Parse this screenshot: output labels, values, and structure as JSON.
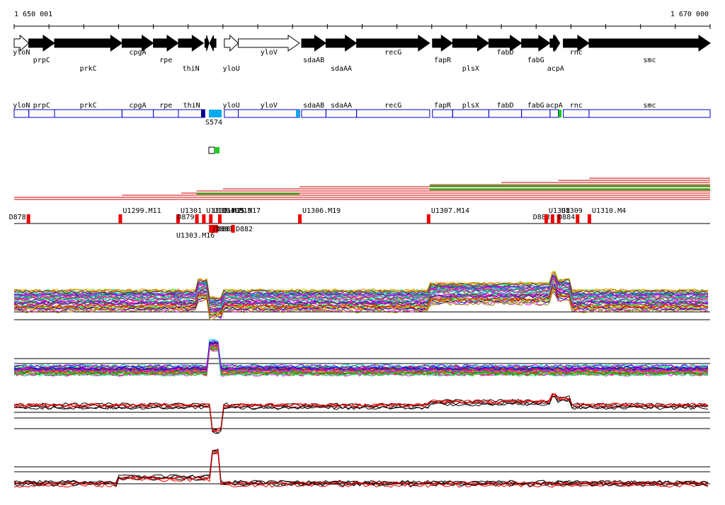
{
  "ruler": {
    "start_label": "1 650 001",
    "end_label": "1 670 000",
    "start": 1650001,
    "end": 1670000
  },
  "colors": {
    "gene": "#000000",
    "segment": "#0000cc",
    "highlight": "#00aaee",
    "upstream": "#cc0000",
    "downstream": "#00bb00",
    "profile_red": "#dd0000"
  },
  "genes": [
    {
      "name": "yloN",
      "strand": "+",
      "filled": false,
      "a": 0.0,
      "b": 0.021,
      "label_row": 1
    },
    {
      "name": "prpC",
      "strand": "+",
      "filled": true,
      "a": 0.021,
      "b": 0.058,
      "label_row": 2
    },
    {
      "name": "prkC",
      "strand": "+",
      "filled": true,
      "a": 0.058,
      "b": 0.155,
      "label_row": 3
    },
    {
      "name": "cpgA",
      "strand": "+",
      "filled": true,
      "a": 0.155,
      "b": 0.2,
      "label_row": 1
    },
    {
      "name": "rpe",
      "strand": "+",
      "filled": true,
      "a": 0.2,
      "b": 0.236,
      "label_row": 2
    },
    {
      "name": "thiN",
      "strand": "+",
      "filled": true,
      "a": 0.236,
      "b": 0.272,
      "label_row": 3
    },
    {
      "name": "",
      "strand": "+",
      "filled": true,
      "a": 0.274,
      "b": 0.28,
      "label_row": 1
    },
    {
      "name": "",
      "strand": "-",
      "filled": true,
      "a": 0.281,
      "b": 0.29,
      "label_row": 1
    },
    {
      "name": "yloU",
      "strand": "+",
      "filled": false,
      "a": 0.302,
      "b": 0.322,
      "label_row": 3
    },
    {
      "name": "yloV",
      "strand": "+",
      "filled": false,
      "a": 0.322,
      "b": 0.41,
      "label_row": 1
    },
    {
      "name": "sdaAB",
      "strand": "+",
      "filled": true,
      "a": 0.413,
      "b": 0.448,
      "label_row": 2
    },
    {
      "name": "sdaAA",
      "strand": "+",
      "filled": true,
      "a": 0.448,
      "b": 0.492,
      "label_row": 3
    },
    {
      "name": "recG",
      "strand": "+",
      "filled": true,
      "a": 0.492,
      "b": 0.597,
      "label_row": 1
    },
    {
      "name": "fapR",
      "strand": "+",
      "filled": true,
      "a": 0.601,
      "b": 0.63,
      "label_row": 2
    },
    {
      "name": "plsX",
      "strand": "+",
      "filled": true,
      "a": 0.63,
      "b": 0.682,
      "label_row": 3
    },
    {
      "name": "fabD",
      "strand": "+",
      "filled": true,
      "a": 0.682,
      "b": 0.729,
      "label_row": 1
    },
    {
      "name": "fabG",
      "strand": "+",
      "filled": true,
      "a": 0.729,
      "b": 0.77,
      "label_row": 2
    },
    {
      "name": "",
      "strand": "+",
      "filled": true,
      "a": 0.77,
      "b": 0.782,
      "label_row": 1
    },
    {
      "name": "acpA",
      "strand": "+",
      "filled": true,
      "a": 0.772,
      "b": 0.784,
      "label_row": 3
    },
    {
      "name": "rnc",
      "strand": "+",
      "filled": true,
      "a": 0.789,
      "b": 0.826,
      "label_row": 1
    },
    {
      "name": "smc",
      "strand": "+",
      "filled": true,
      "a": 0.826,
      "b": 1.0,
      "label_row": 2
    }
  ],
  "segments": [
    {
      "name": "yloN",
      "a": 0.0,
      "b": 0.021
    },
    {
      "name": "prpC",
      "a": 0.021,
      "b": 0.058
    },
    {
      "name": "prkC",
      "a": 0.058,
      "b": 0.155
    },
    {
      "name": "cpgA",
      "a": 0.155,
      "b": 0.2
    },
    {
      "name": "rpe",
      "a": 0.2,
      "b": 0.236
    },
    {
      "name": "thiN",
      "a": 0.236,
      "b": 0.274
    },
    {
      "name": "yloU",
      "a": 0.302,
      "b": 0.322
    },
    {
      "name": "yloV",
      "a": 0.322,
      "b": 0.41
    },
    {
      "name": "sdaAB",
      "a": 0.413,
      "b": 0.448
    },
    {
      "name": "sdaAA",
      "a": 0.448,
      "b": 0.492
    },
    {
      "name": "recG",
      "a": 0.492,
      "b": 0.597
    },
    {
      "name": "fapR",
      "a": 0.601,
      "b": 0.63
    },
    {
      "name": "plsX",
      "a": 0.63,
      "b": 0.682
    },
    {
      "name": "fabD",
      "a": 0.682,
      "b": 0.729
    },
    {
      "name": "fabG",
      "a": 0.729,
      "b": 0.77
    },
    {
      "name": "acpA",
      "a": 0.77,
      "b": 0.782
    },
    {
      "name": "rnc",
      "a": 0.789,
      "b": 0.826
    },
    {
      "name": "smc",
      "a": 0.826,
      "b": 1.0
    }
  ],
  "segment_label": "S574",
  "markers_upper": [
    {
      "name": "D878",
      "pos": 0.02
    },
    {
      "name": "U1299.M11",
      "pos": 0.152
    },
    {
      "name": "U1301",
      "pos": 0.235
    },
    {
      "name": "D879",
      "pos": 0.262
    },
    {
      "name": "U1302.M15",
      "pos": 0.272
    },
    {
      "name": "U1304.M15",
      "pos": 0.282
    },
    {
      "name": "U1305.M17",
      "pos": 0.295
    },
    {
      "name": "U1306.M19",
      "pos": 0.41
    },
    {
      "name": "U1307.M14",
      "pos": 0.595
    },
    {
      "name": "D883",
      "pos": 0.773
    },
    {
      "name": "U1308",
      "pos": 0.764
    },
    {
      "name": "U1309",
      "pos": 0.782
    },
    {
      "name": "D884",
      "pos": 0.809
    },
    {
      "name": "U1310.M4",
      "pos": 0.826
    }
  ],
  "markers_lower": [
    {
      "name": "U1303.M16",
      "pos": 0.285
    },
    {
      "name": "D880",
      "pos": 0.282
    },
    {
      "name": "D881",
      "pos": 0.29
    },
    {
      "name": "D882",
      "pos": 0.314
    }
  ]
}
